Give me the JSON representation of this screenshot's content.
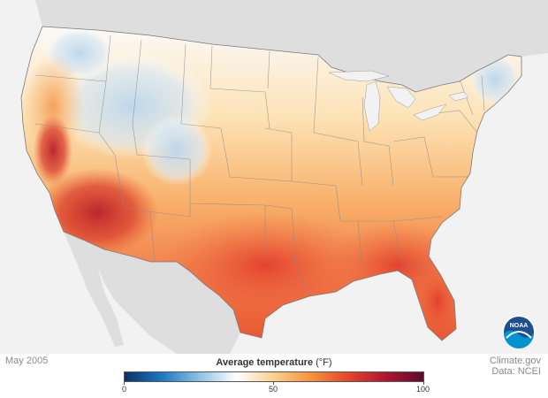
{
  "date_label": "May 2005",
  "source": {
    "line1": "Climate.gov",
    "line2": "Data: NCEI"
  },
  "legend": {
    "title": "Average temperature",
    "unit": "(°F)",
    "min": 0,
    "mid": 50,
    "max": 100,
    "ticks": [
      "0",
      "50",
      "100"
    ],
    "colors": [
      "#0c2f6b",
      "#1b79c4",
      "#8cc2e6",
      "#ffffff",
      "#fdd08a",
      "#f7903f",
      "#e8432a",
      "#b01532",
      "#5e0a2b"
    ]
  },
  "logo": {
    "text": "NOAA",
    "icon": "noaa-logo-icon"
  },
  "colors": {
    "land_background": "#dedede",
    "ocean_background": "#f2f2f2",
    "state_border": "#8a8a8a"
  }
}
